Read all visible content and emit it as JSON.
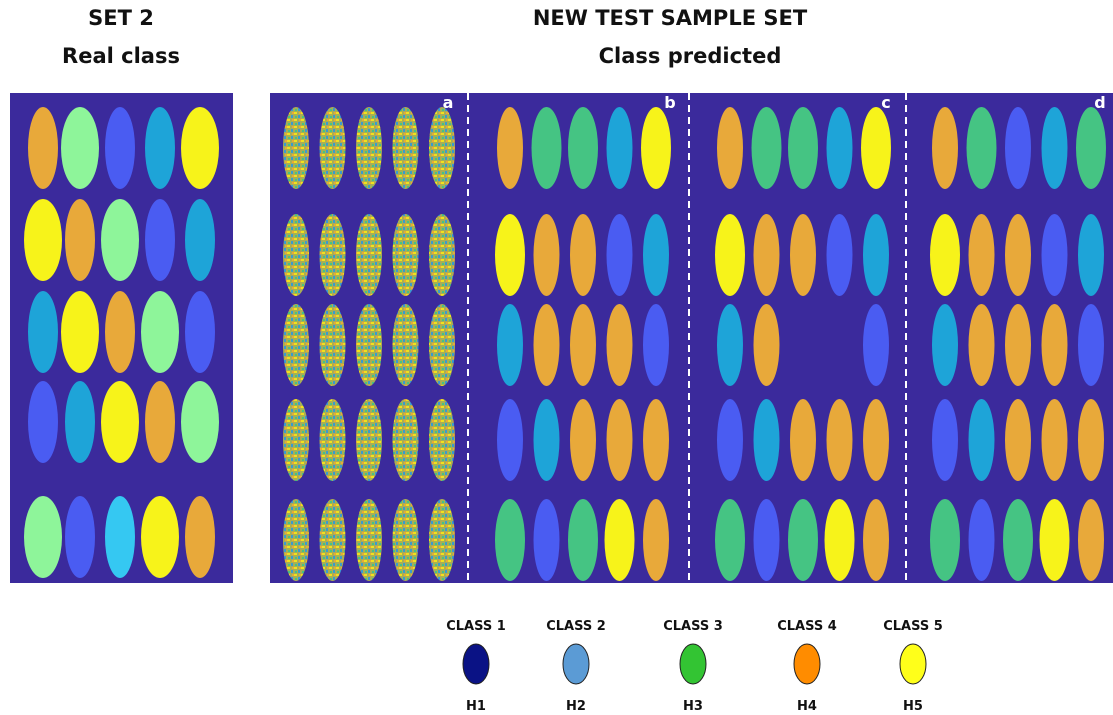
{
  "left": {
    "title": "SET 2",
    "subtitle": "Real class"
  },
  "right": {
    "title": "NEW TEST SAMPLE SET",
    "subtitle": "Class predicted",
    "panels": [
      "a",
      "b",
      "c",
      "d"
    ]
  },
  "legend": [
    {
      "label": "CLASS 1",
      "code": "H1",
      "color": "#0a1285"
    },
    {
      "label": "CLASS 2",
      "code": "H2",
      "color": "#5b9bd5"
    },
    {
      "label": "CLASS 3",
      "code": "H3",
      "color": "#33c433"
    },
    {
      "label": "CLASS 4",
      "code": "H4",
      "color": "#ff8c00"
    },
    {
      "label": "CLASS 5",
      "code": "H5",
      "color": "#ffff1a"
    }
  ]
}
